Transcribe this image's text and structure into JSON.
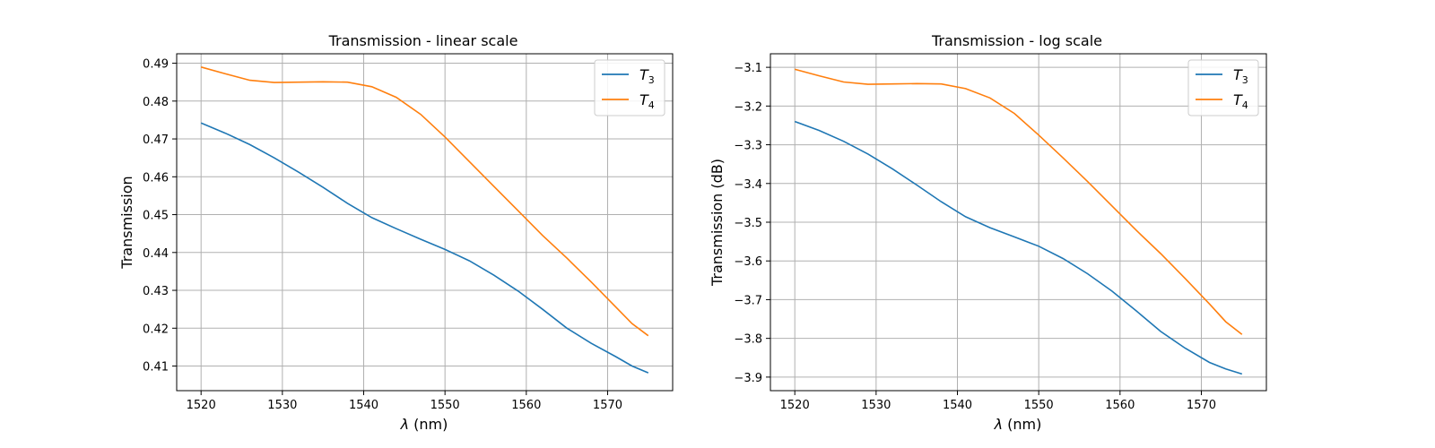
{
  "chart_data": [
    {
      "type": "line",
      "title": "Transmission - linear scale",
      "xlabel_symbol": "λ",
      "xlabel_unit": " (nm)",
      "ylabel": "Transmission",
      "xlim": [
        1517,
        1578
      ],
      "ylim": [
        0.4035,
        0.4925
      ],
      "xticks": [
        1520,
        1530,
        1540,
        1550,
        1560,
        1570
      ],
      "xtick_labels": [
        "1520",
        "1530",
        "1540",
        "1550",
        "1560",
        "1570"
      ],
      "yticks": [
        0.41,
        0.42,
        0.43,
        0.44,
        0.45,
        0.46,
        0.47,
        0.48,
        0.49
      ],
      "ytick_labels": [
        "0.41",
        "0.42",
        "0.43",
        "0.44",
        "0.45",
        "0.46",
        "0.47",
        "0.48",
        "0.49"
      ],
      "grid": true,
      "legend": "top-right",
      "x": [
        1520,
        1523,
        1526,
        1529,
        1532,
        1535,
        1538,
        1541,
        1544,
        1547,
        1550,
        1553,
        1556,
        1559,
        1562,
        1565,
        1568,
        1571,
        1573,
        1575
      ],
      "series": [
        {
          "name_base": "T",
          "name_sub": "3",
          "color": "#1f77b4",
          "values": [
            0.4742,
            0.4715,
            0.4685,
            0.465,
            0.4612,
            0.4572,
            0.453,
            0.4492,
            0.4463,
            0.4435,
            0.4408,
            0.4378,
            0.434,
            0.4298,
            0.425,
            0.42,
            0.416,
            0.4125,
            0.41,
            0.4082
          ]
        },
        {
          "name_base": "T",
          "name_sub": "4",
          "color": "#ff7f0e",
          "values": [
            0.489,
            0.4872,
            0.4855,
            0.4849,
            0.485,
            0.4851,
            0.485,
            0.4838,
            0.481,
            0.4765,
            0.4705,
            0.464,
            0.4575,
            0.451,
            0.4445,
            0.4385,
            0.4322,
            0.4256,
            0.4212,
            0.418
          ]
        }
      ]
    },
    {
      "type": "line",
      "title": "Transmission - log scale",
      "xlabel_symbol": "λ",
      "xlabel_unit": " (nm)",
      "ylabel": "Transmission (dB)",
      "xlim": [
        1517,
        1578
      ],
      "ylim": [
        -3.935,
        -3.065
      ],
      "xticks": [
        1520,
        1530,
        1540,
        1550,
        1560,
        1570
      ],
      "xtick_labels": [
        "1520",
        "1530",
        "1540",
        "1550",
        "1560",
        "1570"
      ],
      "yticks": [
        -3.1,
        -3.2,
        -3.3,
        -3.4,
        -3.5,
        -3.6,
        -3.7,
        -3.8,
        -3.9
      ],
      "ytick_labels": [
        "−3.1",
        "−3.2",
        "−3.3",
        "−3.4",
        "−3.5",
        "−3.6",
        "−3.7",
        "−3.8",
        "−3.9"
      ],
      "grid": true,
      "legend": "top-right",
      "x": [
        1520,
        1523,
        1526,
        1529,
        1532,
        1535,
        1538,
        1541,
        1544,
        1547,
        1550,
        1553,
        1556,
        1559,
        1562,
        1565,
        1568,
        1571,
        1573,
        1575
      ],
      "series": [
        {
          "name_base": "T",
          "name_sub": "3",
          "color": "#1f77b4",
          "values": [
            -3.24,
            -3.263,
            -3.291,
            -3.324,
            -3.362,
            -3.404,
            -3.447,
            -3.486,
            -3.514,
            -3.538,
            -3.562,
            -3.594,
            -3.633,
            -3.678,
            -3.729,
            -3.782,
            -3.825,
            -3.862,
            -3.879,
            -3.892
          ]
        },
        {
          "name_base": "T",
          "name_sub": "4",
          "color": "#ff7f0e",
          "values": [
            -3.105,
            -3.122,
            -3.138,
            -3.144,
            -3.143,
            -3.142,
            -3.143,
            -3.155,
            -3.179,
            -3.219,
            -3.275,
            -3.334,
            -3.395,
            -3.458,
            -3.521,
            -3.581,
            -3.645,
            -3.711,
            -3.757,
            -3.79
          ]
        }
      ]
    }
  ]
}
